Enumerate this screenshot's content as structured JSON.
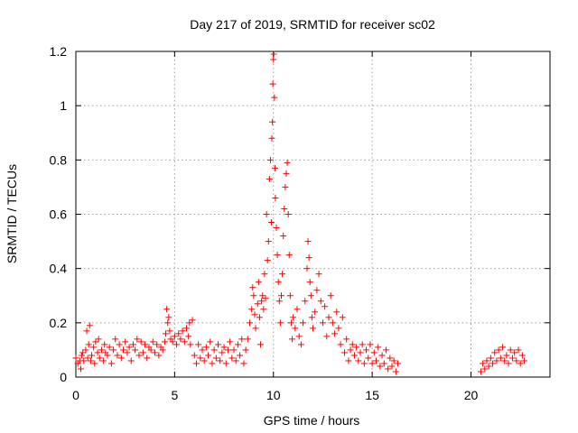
{
  "chart_data": {
    "type": "scatter",
    "title": "Day 217 of 2019, SRMTID for receiver sc02",
    "xlabel": "GPS time / hours",
    "ylabel": "SRMTID / TECUs",
    "xlim": [
      0,
      24
    ],
    "ylim": [
      0,
      1.2
    ],
    "xticks": [
      0,
      5,
      10,
      15,
      20
    ],
    "xtick_labels": [
      "0",
      "5",
      "10",
      "15",
      "20"
    ],
    "yticks": [
      0,
      0.2,
      0.4,
      0.6,
      0.8,
      1.0,
      1.2
    ],
    "ytick_labels": [
      "0",
      "0.2",
      "0.4",
      "0.6",
      "0.8",
      "1",
      "1.2"
    ],
    "grid": true,
    "marker": "plus",
    "series": [
      {
        "name": "sc02",
        "color": "#ff0000",
        "points": [
          [
            0.0,
            0.07
          ],
          [
            0.1,
            0.05
          ],
          [
            0.2,
            0.06
          ],
          [
            0.25,
            0.03
          ],
          [
            0.3,
            0.08
          ],
          [
            0.35,
            0.09
          ],
          [
            0.4,
            0.06
          ],
          [
            0.5,
            0.1
          ],
          [
            0.55,
            0.17
          ],
          [
            0.6,
            0.07
          ],
          [
            0.65,
            0.12
          ],
          [
            0.7,
            0.19
          ],
          [
            0.75,
            0.06
          ],
          [
            0.8,
            0.08
          ],
          [
            0.9,
            0.11
          ],
          [
            0.95,
            0.05
          ],
          [
            1.0,
            0.13
          ],
          [
            1.1,
            0.09
          ],
          [
            1.15,
            0.14
          ],
          [
            1.2,
            0.07
          ],
          [
            1.3,
            0.1
          ],
          [
            1.4,
            0.06
          ],
          [
            1.45,
            0.12
          ],
          [
            1.5,
            0.09
          ],
          [
            1.6,
            0.08
          ],
          [
            1.7,
            0.11
          ],
          [
            1.8,
            0.05
          ],
          [
            1.9,
            0.1
          ],
          [
            2.0,
            0.14
          ],
          [
            2.1,
            0.08
          ],
          [
            2.2,
            0.12
          ],
          [
            2.3,
            0.07
          ],
          [
            2.4,
            0.1
          ],
          [
            2.5,
            0.13
          ],
          [
            2.6,
            0.09
          ],
          [
            2.7,
            0.11
          ],
          [
            2.8,
            0.06
          ],
          [
            2.9,
            0.12
          ],
          [
            3.0,
            0.1
          ],
          [
            3.1,
            0.14
          ],
          [
            3.2,
            0.08
          ],
          [
            3.3,
            0.13
          ],
          [
            3.4,
            0.09
          ],
          [
            3.5,
            0.12
          ],
          [
            3.6,
            0.07
          ],
          [
            3.7,
            0.11
          ],
          [
            3.8,
            0.1
          ],
          [
            3.9,
            0.13
          ],
          [
            4.0,
            0.09
          ],
          [
            4.1,
            0.12
          ],
          [
            4.2,
            0.08
          ],
          [
            4.3,
            0.11
          ],
          [
            4.4,
            0.1
          ],
          [
            4.5,
            0.13
          ],
          [
            4.55,
            0.16
          ],
          [
            4.6,
            0.25
          ],
          [
            4.65,
            0.2
          ],
          [
            4.7,
            0.22
          ],
          [
            4.75,
            0.17
          ],
          [
            4.8,
            0.14
          ],
          [
            4.9,
            0.13
          ],
          [
            5.0,
            0.15
          ],
          [
            5.1,
            0.12
          ],
          [
            5.2,
            0.16
          ],
          [
            5.3,
            0.14
          ],
          [
            5.4,
            0.17
          ],
          [
            5.5,
            0.13
          ],
          [
            5.6,
            0.18
          ],
          [
            5.7,
            0.15
          ],
          [
            5.75,
            0.2
          ],
          [
            5.8,
            0.12
          ],
          [
            5.9,
            0.21
          ],
          [
            6.0,
            0.08
          ],
          [
            6.1,
            0.05
          ],
          [
            6.2,
            0.12
          ],
          [
            6.3,
            0.07
          ],
          [
            6.4,
            0.1
          ],
          [
            6.5,
            0.06
          ],
          [
            6.6,
            0.11
          ],
          [
            6.7,
            0.08
          ],
          [
            6.8,
            0.13
          ],
          [
            6.9,
            0.05
          ],
          [
            7.0,
            0.1
          ],
          [
            7.1,
            0.07
          ],
          [
            7.2,
            0.12
          ],
          [
            7.3,
            0.06
          ],
          [
            7.4,
            0.09
          ],
          [
            7.5,
            0.11
          ],
          [
            7.6,
            0.05
          ],
          [
            7.7,
            0.1
          ],
          [
            7.8,
            0.13
          ],
          [
            7.9,
            0.07
          ],
          [
            8.0,
            0.1
          ],
          [
            8.1,
            0.06
          ],
          [
            8.2,
            0.12
          ],
          [
            8.3,
            0.08
          ],
          [
            8.4,
            0.14
          ],
          [
            8.5,
            0.05
          ],
          [
            8.6,
            0.1
          ],
          [
            8.7,
            0.14
          ],
          [
            8.8,
            0.2
          ],
          [
            8.9,
            0.25
          ],
          [
            8.95,
            0.33
          ],
          [
            9.0,
            0.3
          ],
          [
            9.05,
            0.23
          ],
          [
            9.1,
            0.18
          ],
          [
            9.2,
            0.27
          ],
          [
            9.25,
            0.35
          ],
          [
            9.3,
            0.22
          ],
          [
            9.35,
            0.12
          ],
          [
            9.4,
            0.28
          ],
          [
            9.45,
            0.3
          ],
          [
            9.5,
            0.25
          ],
          [
            9.55,
            0.38
          ],
          [
            9.6,
            0.29
          ],
          [
            9.65,
            0.6
          ],
          [
            9.7,
            0.43
          ],
          [
            9.75,
            0.5
          ],
          [
            9.8,
            0.73
          ],
          [
            9.85,
            0.8
          ],
          [
            9.9,
            0.57
          ],
          [
            9.92,
            0.88
          ],
          [
            9.95,
            0.94
          ],
          [
            9.97,
            1.08
          ],
          [
            10.0,
            1.17
          ],
          [
            10.02,
            1.19
          ],
          [
            10.05,
            1.03
          ],
          [
            10.08,
            0.77
          ],
          [
            10.1,
            0.66
          ],
          [
            10.15,
            0.55
          ],
          [
            10.2,
            0.45
          ],
          [
            10.25,
            0.35
          ],
          [
            10.3,
            0.28
          ],
          [
            10.35,
            0.2
          ],
          [
            10.4,
            0.3
          ],
          [
            10.45,
            0.38
          ],
          [
            10.5,
            0.52
          ],
          [
            10.55,
            0.62
          ],
          [
            10.6,
            0.7
          ],
          [
            10.65,
            0.75
          ],
          [
            10.7,
            0.79
          ],
          [
            10.75,
            0.6
          ],
          [
            10.8,
            0.45
          ],
          [
            10.85,
            0.3
          ],
          [
            10.9,
            0.2
          ],
          [
            10.95,
            0.14
          ],
          [
            11.0,
            0.22
          ],
          [
            11.1,
            0.18
          ],
          [
            11.2,
            0.25
          ],
          [
            11.3,
            0.15
          ],
          [
            11.4,
            0.12
          ],
          [
            11.5,
            0.2
          ],
          [
            11.6,
            0.28
          ],
          [
            11.7,
            0.4
          ],
          [
            11.75,
            0.5
          ],
          [
            11.8,
            0.44
          ],
          [
            11.85,
            0.35
          ],
          [
            11.9,
            0.3
          ],
          [
            11.95,
            0.22
          ],
          [
            12.0,
            0.18
          ],
          [
            12.1,
            0.24
          ],
          [
            12.2,
            0.32
          ],
          [
            12.3,
            0.38
          ],
          [
            12.4,
            0.28
          ],
          [
            12.5,
            0.2
          ],
          [
            12.6,
            0.26
          ],
          [
            12.7,
            0.15
          ],
          [
            12.8,
            0.22
          ],
          [
            12.9,
            0.3
          ],
          [
            13.0,
            0.2
          ],
          [
            13.1,
            0.16
          ],
          [
            13.2,
            0.24
          ],
          [
            13.3,
            0.18
          ],
          [
            13.4,
            0.12
          ],
          [
            13.5,
            0.22
          ],
          [
            13.6,
            0.09
          ],
          [
            13.7,
            0.14
          ],
          [
            13.8,
            0.06
          ],
          [
            13.9,
            0.1
          ],
          [
            14.0,
            0.12
          ],
          [
            14.1,
            0.08
          ],
          [
            14.2,
            0.11
          ],
          [
            14.3,
            0.06
          ],
          [
            14.4,
            0.09
          ],
          [
            14.5,
            0.12
          ],
          [
            14.6,
            0.05
          ],
          [
            14.7,
            0.1
          ],
          [
            14.8,
            0.07
          ],
          [
            14.9,
            0.12
          ],
          [
            15.0,
            0.05
          ],
          [
            15.1,
            0.09
          ],
          [
            15.2,
            0.06
          ],
          [
            15.3,
            0.11
          ],
          [
            15.4,
            0.04
          ],
          [
            15.5,
            0.08
          ],
          [
            15.6,
            0.05
          ],
          [
            15.7,
            0.1
          ],
          [
            15.8,
            0.03
          ],
          [
            15.9,
            0.07
          ],
          [
            16.0,
            0.04
          ],
          [
            16.1,
            0.06
          ],
          [
            16.2,
            0.02
          ],
          [
            16.3,
            0.05
          ],
          [
            20.5,
            0.02
          ],
          [
            20.6,
            0.05
          ],
          [
            20.7,
            0.03
          ],
          [
            20.8,
            0.06
          ],
          [
            20.9,
            0.04
          ],
          [
            21.0,
            0.07
          ],
          [
            21.1,
            0.05
          ],
          [
            21.2,
            0.09
          ],
          [
            21.3,
            0.06
          ],
          [
            21.4,
            0.1
          ],
          [
            21.5,
            0.07
          ],
          [
            21.6,
            0.11
          ],
          [
            21.7,
            0.06
          ],
          [
            21.8,
            0.08
          ],
          [
            21.9,
            0.05
          ],
          [
            22.0,
            0.1
          ],
          [
            22.1,
            0.07
          ],
          [
            22.2,
            0.09
          ],
          [
            22.3,
            0.06
          ],
          [
            22.4,
            0.1
          ],
          [
            22.5,
            0.05
          ],
          [
            22.6,
            0.08
          ],
          [
            22.7,
            0.06
          ]
        ]
      }
    ]
  }
}
